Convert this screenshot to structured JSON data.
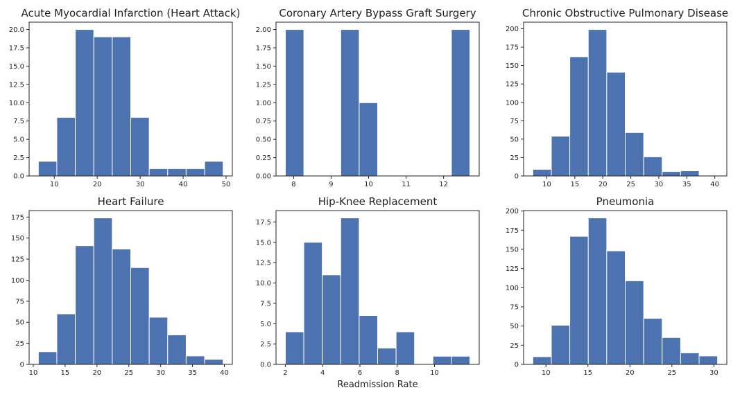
{
  "chart_data": [
    {
      "type": "histogram",
      "title": "Acute Myocardial Infarction (Heart Attack)",
      "color": "#4c72b0",
      "bins": [
        6.3,
        10.6,
        14.9,
        19.2,
        23.5,
        27.8,
        32.1,
        36.4,
        40.7,
        45.0,
        49.3
      ],
      "values": [
        2,
        8,
        20,
        19,
        19,
        8,
        1,
        1,
        1,
        2
      ],
      "xlim": [
        4.15,
        51.45
      ],
      "xticks": [
        10,
        20,
        30,
        40,
        50
      ],
      "ylim": [
        0,
        21
      ],
      "yticks": [
        {
          "value": 0,
          "label": "0.0"
        },
        2.5,
        {
          "value": 5,
          "label": "5.0"
        },
        7.5,
        {
          "value": 10,
          "label": "10.0"
        },
        12.5,
        {
          "value": 15,
          "label": "15.0"
        },
        17.5,
        {
          "value": 20,
          "label": "20.0"
        }
      ]
    },
    {
      "type": "histogram",
      "title": "Coronary Artery Bypass Graft Surgery",
      "color": "#4c72b0",
      "bins": [
        7.78,
        8.272,
        8.764,
        9.256,
        9.748,
        10.24,
        10.732,
        11.224,
        11.716,
        12.208,
        12.7
      ],
      "values": [
        2,
        0,
        0,
        2,
        1,
        0,
        0,
        0,
        0,
        2
      ],
      "xlim": [
        7.53,
        12.95
      ],
      "xticks": [
        8,
        9,
        10,
        11,
        12
      ],
      "ylim": [
        0,
        2.1
      ],
      "yticks": [
        {
          "value": 0,
          "label": "0.00"
        },
        {
          "value": 0.25,
          "label": "0.25"
        },
        {
          "value": 0.5,
          "label": "0.50"
        },
        {
          "value": 0.75,
          "label": "0.75"
        },
        {
          "value": 1,
          "label": "1.00"
        },
        {
          "value": 1.25,
          "label": "1.25"
        },
        {
          "value": 1.5,
          "label": "1.50"
        },
        {
          "value": 1.75,
          "label": "1.75"
        },
        {
          "value": 2,
          "label": "2.00"
        }
      ]
    },
    {
      "type": "histogram",
      "title": "Chronic Obstructive Pulmonary Disease",
      "color": "#4c72b0",
      "bins": [
        7.5,
        10.8,
        14.1,
        17.4,
        20.7,
        24,
        27.3,
        30.6,
        33.9,
        37.2,
        40.5
      ],
      "values": [
        9,
        54,
        162,
        199,
        141,
        59,
        26,
        6,
        7,
        1
      ],
      "xlim": [
        5.85,
        42.15
      ],
      "xticks": [
        10,
        15,
        20,
        25,
        30,
        35,
        40
      ],
      "ylim": [
        0,
        208.95
      ],
      "yticks": [
        0,
        25,
        50,
        75,
        100,
        125,
        150,
        175,
        200
      ]
    },
    {
      "type": "histogram",
      "title": "Heart Failure",
      "color": "#4c72b0",
      "bins": [
        10.8,
        13.7,
        16.6,
        19.5,
        22.4,
        25.3,
        28.2,
        31.1,
        34,
        36.9,
        39.8
      ],
      "values": [
        15,
        60,
        141,
        174,
        137,
        115,
        56,
        35,
        10,
        6
      ],
      "xlim": [
        9.35,
        41.25
      ],
      "xticks": [
        10,
        15,
        20,
        25,
        30,
        35,
        40
      ],
      "ylim": [
        0,
        182.7
      ],
      "yticks": [
        0,
        25,
        50,
        75,
        100,
        125,
        150,
        175
      ]
    },
    {
      "type": "histogram",
      "title": "Hip-Knee Replacement",
      "color": "#4c72b0",
      "xlabel": "Readmission Rate",
      "bins": [
        2,
        2.99,
        3.98,
        4.97,
        5.96,
        6.95,
        7.94,
        8.93,
        9.92,
        10.91,
        11.9
      ],
      "values": [
        4,
        15,
        11,
        18,
        6,
        2,
        4,
        0,
        1,
        1
      ],
      "xlim": [
        1.5,
        12.4
      ],
      "xticks": [
        2,
        4,
        6,
        8,
        10
      ],
      "ylim": [
        0,
        18.9
      ],
      "yticks": [
        {
          "value": 0,
          "label": "0.0"
        },
        2.5,
        {
          "value": 5,
          "label": "5.0"
        },
        7.5,
        {
          "value": 10,
          "label": "10.0"
        },
        12.5,
        {
          "value": 15,
          "label": "15.0"
        },
        17.5
      ]
    },
    {
      "type": "histogram",
      "title": "Pneumonia",
      "color": "#4c72b0",
      "bins": [
        8.44,
        10.64,
        12.84,
        15.04,
        17.24,
        19.44,
        21.64,
        23.84,
        26.04,
        28.24,
        30.44
      ],
      "values": [
        10,
        51,
        167,
        191,
        148,
        109,
        60,
        35,
        15,
        11
      ],
      "xlim": [
        7.34,
        31.54
      ],
      "xticks": [
        10,
        15,
        20,
        25,
        30
      ],
      "ylim": [
        0,
        200.55
      ],
      "yticks": [
        0,
        25,
        50,
        75,
        100,
        125,
        150,
        175,
        200
      ]
    }
  ]
}
